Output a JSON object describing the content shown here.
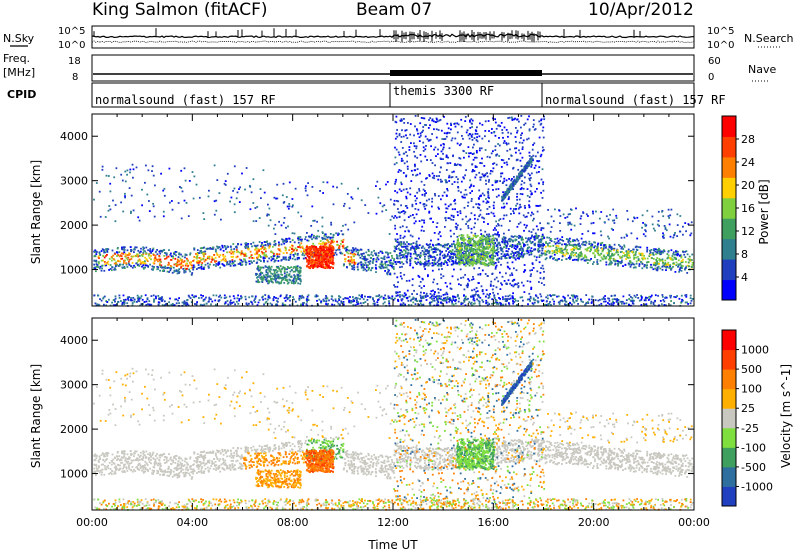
{
  "header": {
    "station": "King Salmon (fitACF)",
    "beam": "Beam 07",
    "date": "10/Apr/2012"
  },
  "side_labels": {
    "nsky": "N.Sky",
    "freq": "Freq.",
    "freq_unit": "[MHz]",
    "cpid": "CPID",
    "nsearch": "N.Search",
    "nave": "Nave",
    "nsky_ticks": [
      "10^5",
      "10^0"
    ],
    "freq_ticks": [
      "18",
      "8"
    ],
    "nsearch_ticks": [
      "10^5",
      "10^0"
    ],
    "nave_ticks": [
      "60",
      "0"
    ]
  },
  "cpid_segments": [
    {
      "label": "normalsound (fast) 157 RF",
      "start_hour": 0,
      "end_hour": 12
    },
    {
      "label": "themis 3300 RF",
      "start_hour": 12,
      "end_hour": 18
    },
    {
      "label": "normalsound (fast) 157 RF",
      "start_hour": 18,
      "end_hour": 24
    }
  ],
  "chart_data": [
    {
      "type": "heatmap",
      "name": "power-panel",
      "ylabel": "Slant Range [km]",
      "xlabel": "",
      "x_range_hours": [
        0,
        24
      ],
      "ylim": [
        180,
        4500
      ],
      "yticks": [
        "1000",
        "2000",
        "3000",
        "4000"
      ],
      "colorbar": {
        "label": "Power [dB]",
        "ticks": [
          "4",
          "8",
          "12",
          "16",
          "20",
          "24",
          "28"
        ],
        "range": [
          0,
          32
        ],
        "colors": [
          "#0000ff",
          "#1f3fbf",
          "#2f7f8f",
          "#3f9f5f",
          "#7fcf3f",
          "#ffcf00",
          "#ff7f00",
          "#ff3f00",
          "#ff0000"
        ]
      }
    },
    {
      "type": "heatmap",
      "name": "velocity-panel",
      "ylabel": "Slant Range [km]",
      "xlabel": "Time UT",
      "x_range_hours": [
        0,
        24
      ],
      "xticks": [
        "00:00",
        "04:00",
        "08:00",
        "12:00",
        "16:00",
        "20:00",
        "00:00"
      ],
      "ylim": [
        180,
        4500
      ],
      "yticks": [
        "1000",
        "2000",
        "3000",
        "4000"
      ],
      "colorbar": {
        "label": "Velocity [m s^-1]",
        "ticks": [
          "1000",
          "500",
          "100",
          "25",
          "-25",
          "-100",
          "-500",
          "-1000"
        ],
        "colors": [
          "#2040c0",
          "#2f6f9f",
          "#3f9f5f",
          "#7fdf3f",
          "#c8c8c0",
          "#ffaf00",
          "#ff7f00",
          "#ff3f00",
          "#ff0000"
        ]
      }
    }
  ]
}
